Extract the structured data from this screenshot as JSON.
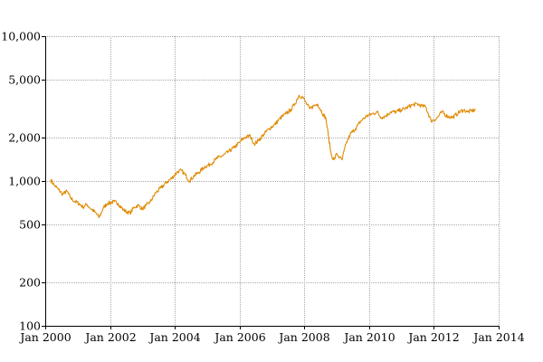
{
  "chart_data": {
    "type": "line",
    "title": "",
    "xlabel": "",
    "ylabel": "",
    "y_scale": "log",
    "ylim": [
      100,
      10000
    ],
    "xlim": [
      "2000-01-01",
      "2014-01-01"
    ],
    "grid": true,
    "x_ticks": [
      "Jan 2000",
      "Jan 2002",
      "Jan 2004",
      "Jan 2006",
      "Jan 2008",
      "Jan 2010",
      "Jan 2012",
      "Jan 2014"
    ],
    "x_tick_dates": [
      "2000-01-01",
      "2002-01-01",
      "2004-01-01",
      "2006-01-01",
      "2008-01-01",
      "2010-01-01",
      "2012-01-01",
      "2014-01-01"
    ],
    "y_ticks": [
      "100",
      "200",
      "500",
      "1,000",
      "2,000",
      "5,000",
      "10,000"
    ],
    "y_tick_values": [
      100,
      200,
      500,
      1000,
      2000,
      5000,
      10000
    ],
    "series": [
      {
        "color": "#e08a00",
        "x": [
          "2000-03-01",
          "2000-04-15",
          "2000-06-01",
          "2000-07-15",
          "2000-09-01",
          "2000-10-15",
          "2000-12-01",
          "2001-01-15",
          "2001-03-01",
          "2001-04-15",
          "2001-06-01",
          "2001-07-15",
          "2001-09-01",
          "2001-10-15",
          "2001-12-01",
          "2002-02-15",
          "2002-04-01",
          "2002-06-01",
          "2002-07-15",
          "2002-08-15",
          "2002-10-01",
          "2002-11-15",
          "2003-01-01",
          "2003-02-15",
          "2003-04-01",
          "2003-06-01",
          "2003-08-01",
          "2003-10-01",
          "2003-12-01",
          "2004-02-01",
          "2004-03-15",
          "2004-05-01",
          "2004-06-15",
          "2004-08-01",
          "2004-10-01",
          "2004-12-01",
          "2005-02-01",
          "2005-04-01",
          "2005-05-01",
          "2005-07-01",
          "2005-09-01",
          "2005-11-01",
          "2006-01-01",
          "2006-03-01",
          "2006-05-01",
          "2006-06-15",
          "2006-08-01",
          "2006-10-01",
          "2006-12-01",
          "2007-02-01",
          "2007-04-01",
          "2007-06-01",
          "2007-08-01",
          "2007-09-15",
          "2007-11-01",
          "2007-12-15",
          "2008-01-15",
          "2008-03-01",
          "2008-04-15",
          "2008-06-01",
          "2008-07-15",
          "2008-09-01",
          "2008-10-01",
          "2008-11-01",
          "2008-12-01",
          "2009-01-01",
          "2009-02-01",
          "2009-03-01",
          "2009-04-15",
          "2009-06-01",
          "2009-08-01",
          "2009-10-01",
          "2009-12-01",
          "2010-02-01",
          "2010-04-01",
          "2010-05-15",
          "2010-07-01",
          "2010-09-01",
          "2010-11-01",
          "2011-01-01",
          "2011-03-01",
          "2011-05-01",
          "2011-07-01",
          "2011-08-15",
          "2011-10-01",
          "2011-12-01",
          "2012-02-01",
          "2012-04-01",
          "2012-06-01",
          "2012-08-01",
          "2012-10-01",
          "2012-12-01",
          "2013-01-15",
          "2013-03-01",
          "2013-04-15"
        ],
        "y": [
          1020,
          930,
          870,
          810,
          850,
          760,
          720,
          700,
          660,
          690,
          640,
          610,
          560,
          650,
          700,
          720,
          700,
          630,
          610,
          600,
          660,
          680,
          640,
          680,
          720,
          830,
          900,
          980,
          1050,
          1160,
          1180,
          1100,
          1000,
          1080,
          1150,
          1250,
          1300,
          1400,
          1450,
          1500,
          1600,
          1700,
          1850,
          2000,
          2050,
          1800,
          1900,
          2100,
          2300,
          2450,
          2700,
          2900,
          3100,
          3400,
          3900,
          3800,
          3500,
          3150,
          3300,
          3400,
          3000,
          2700,
          2000,
          1500,
          1400,
          1550,
          1450,
          1400,
          1800,
          2100,
          2300,
          2600,
          2800,
          2900,
          3000,
          2750,
          2800,
          3000,
          3000,
          3100,
          3200,
          3350,
          3400,
          3300,
          3250,
          2600,
          2700,
          3000,
          2800,
          2750,
          2950,
          3100,
          3000,
          3050,
          3100
        ]
      }
    ]
  }
}
